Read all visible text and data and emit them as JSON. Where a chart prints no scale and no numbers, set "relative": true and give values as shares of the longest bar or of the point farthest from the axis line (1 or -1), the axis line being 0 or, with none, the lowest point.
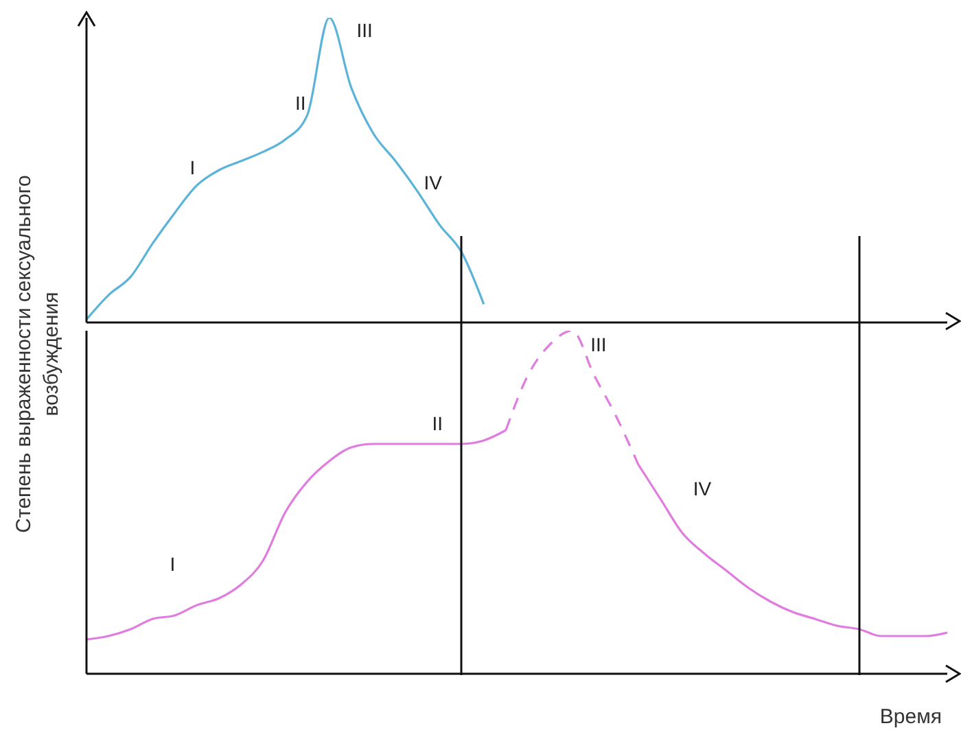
{
  "chart_data": [
    {
      "type": "line",
      "relative": true,
      "ylabel": "Степень выраженности сексуального возбуждения",
      "categories": [
        null,
        null,
        null,
        null,
        null,
        null,
        null,
        null,
        null,
        null,
        null,
        null,
        null,
        null,
        null,
        null,
        null,
        null,
        null,
        null,
        null,
        null,
        null,
        null,
        null,
        null,
        null,
        null,
        null,
        null,
        null,
        null,
        null,
        null,
        null,
        null,
        null,
        null,
        null,
        null
      ],
      "series": [
        {
          "color": "#5bb4d8",
          "values": [
            0.01,
            0.09,
            0.15,
            0.26,
            0.36,
            0.45,
            0.5,
            0.53,
            0.56,
            0.6,
            0.68,
            1.0,
            0.77,
            0.62,
            0.53,
            0.43,
            0.32,
            0.23,
            0.06,
            null,
            null,
            null,
            null,
            null,
            null,
            null,
            null,
            null,
            null,
            null,
            null,
            null,
            null,
            null,
            null,
            null,
            null,
            null,
            null,
            null
          ]
        }
      ],
      "annotations": [
        "I",
        "II",
        "III",
        "IV"
      ]
    },
    {
      "type": "line",
      "relative": true,
      "xlabel": "Время",
      "categories": [
        null,
        null,
        null,
        null,
        null,
        null,
        null,
        null,
        null,
        null,
        null,
        null,
        null,
        null,
        null,
        null,
        null,
        null,
        null,
        null,
        null,
        null,
        null,
        null,
        null,
        null,
        null,
        null,
        null,
        null,
        null,
        null,
        null,
        null,
        null,
        null,
        null,
        null,
        null,
        null
      ],
      "series": [
        {
          "color": "#e07ce0",
          "line_style": "solid",
          "values": [
            0.1,
            0.11,
            0.13,
            0.16,
            0.17,
            0.2,
            0.22,
            0.26,
            0.33,
            0.47,
            0.56,
            0.62,
            0.66,
            0.67,
            0.67,
            0.67,
            0.67,
            0.67,
            0.68,
            0.71,
            null,
            null,
            null,
            null,
            null,
            null,
            null,
            null,
            null,
            null,
            null,
            null,
            null,
            null,
            null,
            null,
            null,
            null,
            null,
            null
          ]
        },
        {
          "color": "#e07ce0",
          "line_style": "dashed",
          "values": [
            null,
            null,
            null,
            null,
            null,
            null,
            null,
            null,
            null,
            null,
            null,
            null,
            null,
            null,
            null,
            null,
            null,
            null,
            null,
            0.71,
            0.87,
            0.96,
            1.0,
            0.87,
            0.75,
            0.61,
            null,
            null,
            null,
            null,
            null,
            null,
            null,
            null,
            null,
            null,
            null,
            null,
            null,
            null
          ]
        },
        {
          "color": "#e07ce0",
          "line_style": "solid",
          "values": [
            null,
            null,
            null,
            null,
            null,
            null,
            null,
            null,
            null,
            null,
            null,
            null,
            null,
            null,
            null,
            null,
            null,
            null,
            null,
            null,
            null,
            null,
            null,
            null,
            null,
            0.61,
            0.51,
            0.41,
            0.35,
            0.3,
            0.25,
            0.21,
            0.18,
            0.16,
            0.14,
            0.13,
            0.11,
            0.11,
            0.11,
            0.12
          ]
        }
      ],
      "annotations": [
        "I",
        "II",
        "III",
        "IV"
      ]
    }
  ]
}
